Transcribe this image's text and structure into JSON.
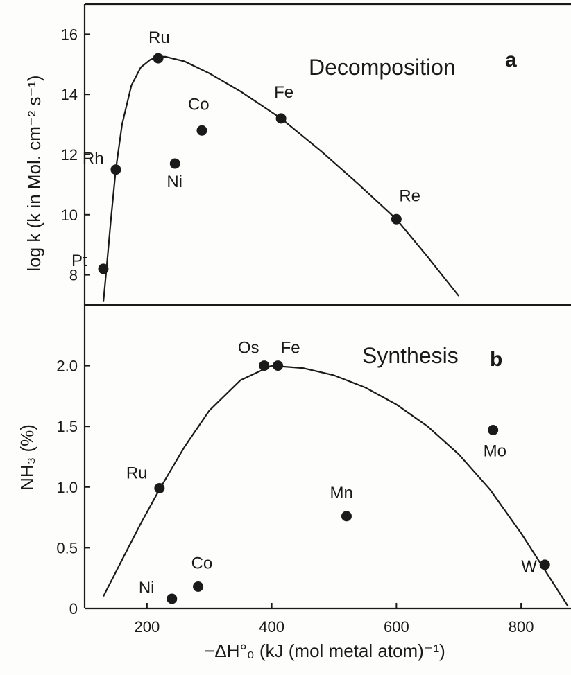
{
  "chart_data": [
    {
      "type": "scatter",
      "panel": "a",
      "title": "Decomposition",
      "panel_letter": "a",
      "ylabel": "log k (k in Mol. cm⁻² s⁻¹)",
      "xlabel": "",
      "xlim": [
        100,
        880
      ],
      "ylim": [
        7,
        17
      ],
      "yticks": [
        "8",
        "10",
        "12",
        "14",
        "16"
      ],
      "ytick_values": [
        8,
        10,
        12,
        14,
        16
      ],
      "points": [
        {
          "label": "Pt",
          "x": 130,
          "y": 8.2
        },
        {
          "label": "Rh",
          "x": 150,
          "y": 11.5
        },
        {
          "label": "Ru",
          "x": 218,
          "y": 15.2
        },
        {
          "label": "Ni",
          "x": 245,
          "y": 11.7
        },
        {
          "label": "Co",
          "x": 288,
          "y": 12.8
        },
        {
          "label": "Fe",
          "x": 415,
          "y": 13.2
        },
        {
          "label": "Re",
          "x": 600,
          "y": 9.85
        }
      ],
      "curve": {
        "x": [
          130,
          135,
          142,
          150,
          160,
          175,
          190,
          205,
          218,
          230,
          260,
          300,
          350,
          415,
          480,
          540,
          600,
          650,
          700
        ],
        "y": [
          7.1,
          8.2,
          9.8,
          11.5,
          13.0,
          14.3,
          14.9,
          15.15,
          15.25,
          15.25,
          15.1,
          14.7,
          14.1,
          13.2,
          12.1,
          11.0,
          9.85,
          8.6,
          7.3
        ]
      },
      "grid": false,
      "legend": "none"
    },
    {
      "type": "scatter",
      "panel": "b",
      "title": "Synthesis",
      "panel_letter": "b",
      "ylabel": "NH₃ (%)",
      "xlabel": "−ΔH°₀ (kJ (mol metal atom)⁻¹)",
      "xlim": [
        100,
        880
      ],
      "ylim": [
        0,
        2.5
      ],
      "yticks": [
        "0",
        "0.5",
        "1.0",
        "1.5",
        "2.0"
      ],
      "ytick_values": [
        0,
        0.5,
        1.0,
        1.5,
        2.0
      ],
      "xticks": [
        "200",
        "400",
        "600",
        "800"
      ],
      "xtick_values": [
        200,
        400,
        600,
        800
      ],
      "points": [
        {
          "label": "Ni",
          "x": 240,
          "y": 0.08
        },
        {
          "label": "Co",
          "x": 282,
          "y": 0.18
        },
        {
          "label": "Ru",
          "x": 220,
          "y": 0.99
        },
        {
          "label": "Os",
          "x": 388,
          "y": 2.0
        },
        {
          "label": "Fe",
          "x": 410,
          "y": 2.0
        },
        {
          "label": "Mn",
          "x": 520,
          "y": 0.76
        },
        {
          "label": "Mo",
          "x": 755,
          "y": 1.47
        },
        {
          "label": "W",
          "x": 838,
          "y": 0.36
        }
      ],
      "curve": {
        "x": [
          130,
          160,
          190,
          220,
          260,
          300,
          350,
          400,
          450,
          500,
          550,
          600,
          650,
          700,
          750,
          800,
          840,
          875
        ],
        "y": [
          0.1,
          0.4,
          0.7,
          0.98,
          1.33,
          1.63,
          1.88,
          2.0,
          1.98,
          1.92,
          1.82,
          1.68,
          1.5,
          1.27,
          0.98,
          0.62,
          0.3,
          0.02
        ]
      },
      "grid": false,
      "legend": "none"
    }
  ]
}
